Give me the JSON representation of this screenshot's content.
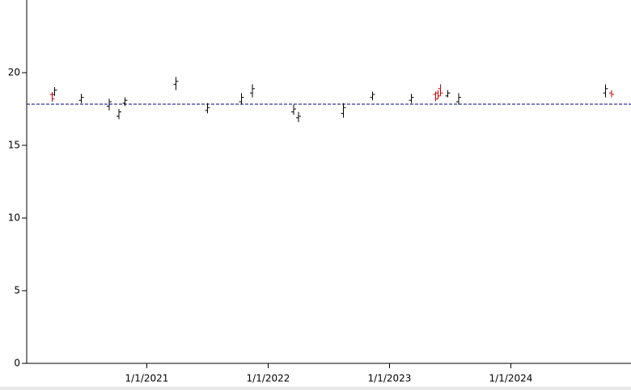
{
  "chart_data": {
    "type": "ohlc",
    "x": [
      2020.22,
      2020.24,
      2020.46,
      2020.69,
      2020.77,
      2020.82,
      2021.24,
      2021.5,
      2021.78,
      2021.87,
      2022.21,
      2022.25,
      2022.62,
      2022.86,
      2023.18,
      2023.38,
      2023.4,
      2023.42,
      2023.48,
      2023.57,
      2024.78,
      2024.83
    ],
    "open": [
      18.5,
      18.5,
      18.1,
      17.7,
      17.0,
      17.9,
      19.2,
      17.4,
      18.0,
      18.6,
      17.3,
      16.9,
      17.2,
      18.3,
      18.1,
      18.5,
      18.6,
      18.9,
      18.4,
      18.0,
      18.6,
      18.6
    ],
    "high": [
      18.67,
      19.0,
      18.55,
      18.2,
      17.5,
      18.3,
      19.7,
      17.9,
      18.6,
      19.2,
      17.8,
      17.3,
      17.9,
      18.7,
      18.55,
      18.7,
      18.8,
      19.2,
      18.8,
      18.6,
      19.2,
      18.8
    ],
    "low": [
      18.0,
      18.4,
      17.9,
      17.4,
      16.8,
      17.7,
      18.8,
      17.2,
      17.8,
      18.3,
      17.1,
      16.6,
      16.9,
      18.1,
      17.9,
      18.05,
      18.2,
      18.4,
      18.3,
      17.8,
      18.3,
      18.3
    ],
    "close": [
      18.2,
      18.8,
      18.3,
      18.0,
      17.3,
      18.1,
      19.4,
      17.6,
      18.3,
      18.9,
      17.5,
      17.0,
      17.6,
      18.5,
      18.3,
      18.2,
      18.4,
      18.6,
      18.6,
      18.3,
      18.9,
      18.5
    ],
    "up_color": "#000000",
    "down_color": "#cc0000",
    "reference_line": 17.83,
    "reference_color": "#000080",
    "xlim": [
      2020.01,
      2024.99
    ],
    "xticks": [
      {
        "value": 2021,
        "label": "1/1/2021"
      },
      {
        "value": 2022,
        "label": "1/1/2022"
      },
      {
        "value": 2023,
        "label": "1/1/2023"
      },
      {
        "value": 2024,
        "label": "1/1/2024"
      }
    ],
    "ylim": [
      0,
      25
    ],
    "yticks": [
      0,
      5,
      10,
      15,
      20
    ]
  }
}
